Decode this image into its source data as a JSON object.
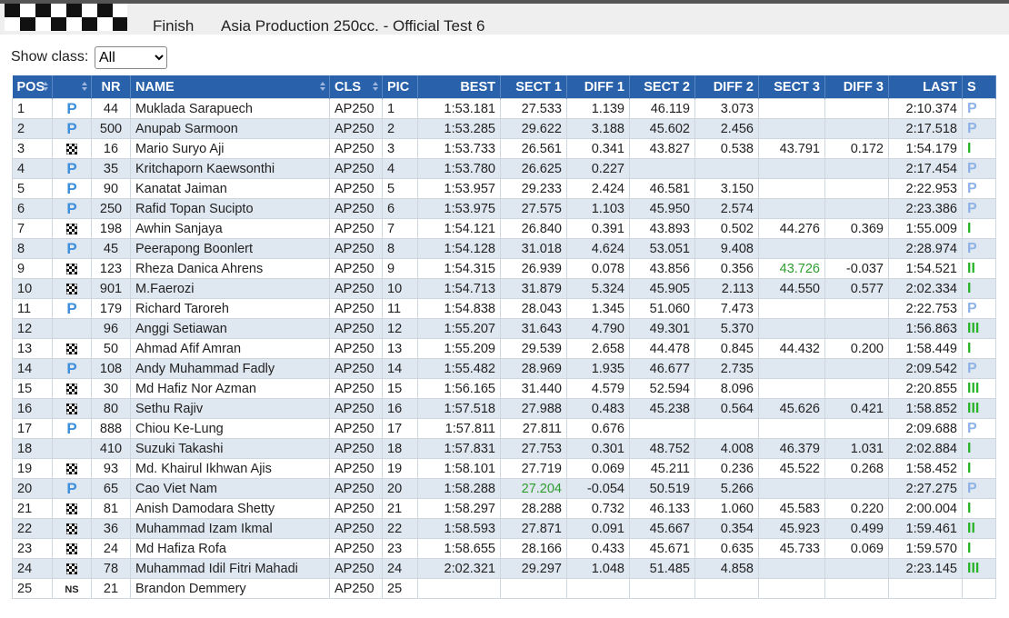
{
  "header": {
    "status": "Finish",
    "title": "Asia Production 250cc. - Official Test 6"
  },
  "filter": {
    "label": "Show class:",
    "value": "All"
  },
  "table": {
    "columns": [
      {
        "label": "POS",
        "sortable": true,
        "align": "left"
      },
      {
        "label": null,
        "sortable": true,
        "align": "center"
      },
      {
        "label": "NR",
        "sortable": false,
        "align": "center"
      },
      {
        "label": "NAME",
        "sortable": true,
        "align": "left"
      },
      {
        "label": "CLS",
        "sortable": true,
        "align": "left"
      },
      {
        "label": "PIC",
        "sortable": false,
        "align": "left"
      },
      {
        "label": "BEST",
        "sortable": false,
        "align": "right"
      },
      {
        "label": "SECT 1",
        "sortable": false,
        "align": "right"
      },
      {
        "label": "DIFF 1",
        "sortable": false,
        "align": "right"
      },
      {
        "label": "SECT 2",
        "sortable": false,
        "align": "right"
      },
      {
        "label": "DIFF 2",
        "sortable": false,
        "align": "right"
      },
      {
        "label": "SECT 3",
        "sortable": false,
        "align": "right"
      },
      {
        "label": "DIFF 3",
        "sortable": false,
        "align": "right"
      },
      {
        "label": "LAST",
        "sortable": false,
        "align": "right"
      },
      {
        "label": "S",
        "sortable": false,
        "align": "left"
      }
    ],
    "pit_color": "#3d8fdc",
    "rows": [
      {
        "kind": "pit",
        "s_color": "#8fb3e6",
        "cells": [
          "1",
          "P",
          "44",
          "Muklada Sarapuech",
          "AP250",
          "1",
          "1:53.181",
          "27.533",
          "1.139",
          "46.119",
          "3.073",
          null,
          null,
          "2:10.374",
          "P"
        ]
      },
      {
        "kind": "pit",
        "s_color": "#8fb3e6",
        "cells": [
          "2",
          "P",
          "500",
          "Anupab Sarmoon",
          "AP250",
          "2",
          "1:53.285",
          "29.622",
          "3.188",
          "45.602",
          "2.456",
          null,
          null,
          "2:17.518",
          "P"
        ]
      },
      {
        "kind": "finish",
        "s_color": "#27b327",
        "cells": [
          "3",
          null,
          "16",
          "Mario Suryo Aji",
          "AP250",
          "3",
          "1:53.733",
          "26.561",
          "0.341",
          "43.827",
          "0.538",
          "43.791",
          "0.172",
          "1:54.179",
          "I"
        ]
      },
      {
        "kind": "pit",
        "s_color": "#8fb3e6",
        "cells": [
          "4",
          "P",
          "35",
          "Kritchaporn Kaewsonthi",
          "AP250",
          "4",
          "1:53.780",
          "26.625",
          "0.227",
          null,
          null,
          null,
          null,
          "2:17.454",
          "P"
        ]
      },
      {
        "kind": "pit",
        "s_color": "#8fb3e6",
        "cells": [
          "5",
          "P",
          "90",
          "Kanatat Jaiman",
          "AP250",
          "5",
          "1:53.957",
          "29.233",
          "2.424",
          "46.581",
          "3.150",
          null,
          null,
          "2:22.953",
          "P"
        ]
      },
      {
        "kind": "pit",
        "s_color": "#8fb3e6",
        "cells": [
          "6",
          "P",
          "250",
          "Rafid Topan Sucipto",
          "AP250",
          "6",
          "1:53.975",
          "27.575",
          "1.103",
          "45.950",
          "2.574",
          null,
          null,
          "2:23.386",
          "P"
        ]
      },
      {
        "kind": "finish",
        "s_color": "#27b327",
        "cells": [
          "7",
          null,
          "198",
          "Awhin Sanjaya",
          "AP250",
          "7",
          "1:54.121",
          "26.840",
          "0.391",
          "43.893",
          "0.502",
          "44.276",
          "0.369",
          "1:55.009",
          "I"
        ]
      },
      {
        "kind": "pit",
        "s_color": "#8fb3e6",
        "cells": [
          "8",
          "P",
          "45",
          "Peerapong Boonlert",
          "AP250",
          "8",
          "1:54.128",
          "31.018",
          "4.624",
          "53.051",
          "9.408",
          null,
          null,
          "2:28.974",
          "P"
        ]
      },
      {
        "kind": "finish",
        "s_color": "#27b327",
        "cells": [
          "9",
          null,
          "123",
          "Rheza Danica Ahrens",
          "AP250",
          "9",
          "1:54.315",
          "26.939",
          "0.078",
          "43.856",
          "0.356",
          {
            "value": "43.726",
            "color": "#2e9c2e"
          },
          "-0.037",
          "1:54.521",
          "II"
        ]
      },
      {
        "kind": "finish",
        "s_color": "#27b327",
        "cells": [
          "10",
          null,
          "901",
          "M.Faerozi",
          "AP250",
          "10",
          "1:54.713",
          "31.879",
          "5.324",
          "45.905",
          "2.113",
          "44.550",
          "0.577",
          "2:02.334",
          "I"
        ]
      },
      {
        "kind": "pit",
        "s_color": "#8fb3e6",
        "cells": [
          "11",
          "P",
          "179",
          "Richard Taroreh",
          "AP250",
          "11",
          "1:54.838",
          "28.043",
          "1.345",
          "51.060",
          "7.473",
          null,
          null,
          "2:22.753",
          "P"
        ]
      },
      {
        "kind": null,
        "s_color": "#27b327",
        "cells": [
          "12",
          null,
          "96",
          "Anggi Setiawan",
          "AP250",
          "12",
          "1:55.207",
          "31.643",
          "4.790",
          "49.301",
          "5.370",
          null,
          null,
          "1:56.863",
          "III"
        ]
      },
      {
        "kind": "finish",
        "s_color": "#27b327",
        "cells": [
          "13",
          null,
          "50",
          "Ahmad Afif Amran",
          "AP250",
          "13",
          "1:55.209",
          "29.539",
          "2.658",
          "44.478",
          "0.845",
          "44.432",
          "0.200",
          "1:58.449",
          "I"
        ]
      },
      {
        "kind": "pit",
        "s_color": "#8fb3e6",
        "cells": [
          "14",
          "P",
          "108",
          "Andy Muhammad Fadly",
          "AP250",
          "14",
          "1:55.482",
          "28.969",
          "1.935",
          "46.677",
          "2.735",
          null,
          null,
          "2:09.542",
          "P"
        ]
      },
      {
        "kind": "finish",
        "s_color": "#27b327",
        "cells": [
          "15",
          null,
          "30",
          "Md Hafiz Nor Azman",
          "AP250",
          "15",
          "1:56.165",
          "31.440",
          "4.579",
          "52.594",
          "8.096",
          null,
          null,
          "2:20.855",
          "III"
        ]
      },
      {
        "kind": "finish",
        "s_color": "#27b327",
        "cells": [
          "16",
          null,
          "80",
          "Sethu Rajiv",
          "AP250",
          "16",
          "1:57.518",
          "27.988",
          "0.483",
          "45.238",
          "0.564",
          "45.626",
          "0.421",
          "1:58.852",
          "III"
        ]
      },
      {
        "kind": "pit",
        "s_color": "#8fb3e6",
        "cells": [
          "17",
          "P",
          "888",
          "Chiou Ke-Lung",
          "AP250",
          "17",
          "1:57.811",
          "27.811",
          "0.676",
          null,
          null,
          null,
          null,
          "2:09.688",
          "P"
        ]
      },
      {
        "kind": null,
        "s_color": "#27b327",
        "cells": [
          "18",
          null,
          "410",
          "Suzuki Takashi",
          "AP250",
          "18",
          "1:57.831",
          "27.753",
          "0.301",
          "48.752",
          "4.008",
          "46.379",
          "1.031",
          "2:02.884",
          "I"
        ]
      },
      {
        "kind": "finish",
        "s_color": "#27b327",
        "cells": [
          "19",
          null,
          "93",
          "Md. Khairul Ikhwan Ajis",
          "AP250",
          "19",
          "1:58.101",
          "27.719",
          "0.069",
          "45.211",
          "0.236",
          "45.522",
          "0.268",
          "1:58.452",
          "I"
        ]
      },
      {
        "kind": "pit",
        "s_color": "#8fb3e6",
        "cells": [
          "20",
          "P",
          "65",
          "Cao Viet Nam",
          "AP250",
          "20",
          "1:58.288",
          {
            "value": "27.204",
            "color": "#2e9c2e"
          },
          "-0.054",
          "50.519",
          "5.266",
          null,
          null,
          "2:27.275",
          "P"
        ]
      },
      {
        "kind": "finish",
        "s_color": "#27b327",
        "cells": [
          "21",
          null,
          "81",
          "Anish Damodara Shetty",
          "AP250",
          "21",
          "1:58.297",
          "28.288",
          "0.732",
          "46.133",
          "1.060",
          "45.583",
          "0.220",
          "2:00.004",
          "I"
        ]
      },
      {
        "kind": "finish",
        "s_color": "#27b327",
        "cells": [
          "22",
          null,
          "36",
          "Muhammad Izam Ikmal",
          "AP250",
          "22",
          "1:58.593",
          "27.871",
          "0.091",
          "45.667",
          "0.354",
          "45.923",
          "0.499",
          "1:59.461",
          "II"
        ]
      },
      {
        "kind": "finish",
        "s_color": "#27b327",
        "cells": [
          "23",
          null,
          "24",
          "Md Hafiza Rofa",
          "AP250",
          "23",
          "1:58.655",
          "28.166",
          "0.433",
          "45.671",
          "0.635",
          "45.733",
          "0.069",
          "1:59.570",
          "I"
        ]
      },
      {
        "kind": "finish",
        "s_color": "#27b327",
        "cells": [
          "24",
          null,
          "78",
          "Muhammad Idil Fitri Mahadi",
          "AP250",
          "24",
          "2:02.321",
          "29.297",
          "1.048",
          "51.485",
          "4.858",
          null,
          null,
          "2:23.145",
          "III"
        ]
      },
      {
        "kind": "ns",
        "s_color": "#27b327",
        "cells": [
          "25",
          "NS",
          "21",
          "Brandon Demmery",
          "AP250",
          "25",
          null,
          null,
          null,
          null,
          null,
          null,
          null,
          null,
          null
        ]
      }
    ]
  }
}
